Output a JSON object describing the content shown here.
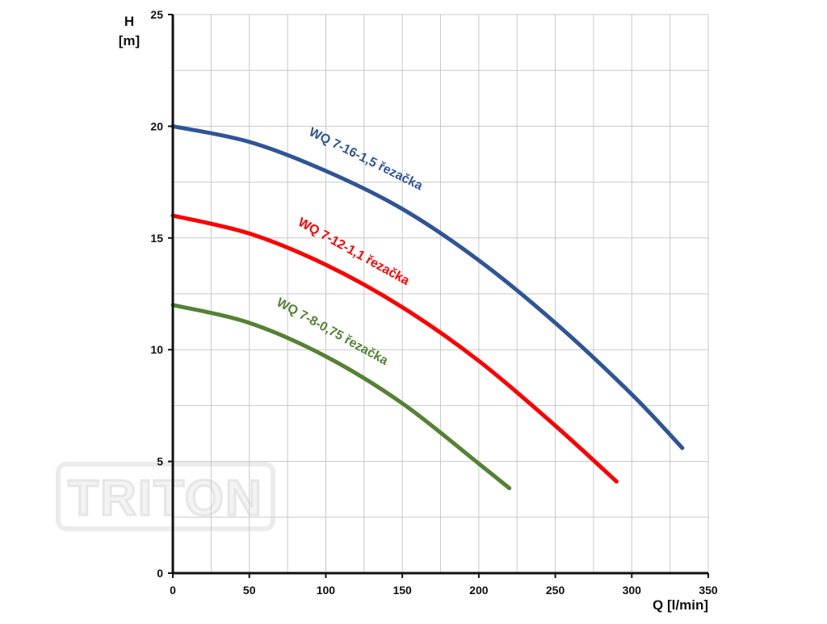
{
  "watermark": {
    "text": "TRITON"
  },
  "chart_data": {
    "type": "line",
    "title": "",
    "xlabel": "Q [l/min]",
    "ylabel_line1": "H",
    "ylabel_line2": "[m]",
    "xlim": [
      0,
      350
    ],
    "ylim": [
      0,
      25
    ],
    "grid": true,
    "x_ticks": [
      0,
      50,
      100,
      150,
      200,
      250,
      300,
      350
    ],
    "y_ticks": [
      0,
      5,
      10,
      15,
      20,
      25
    ],
    "series": [
      {
        "name": "WQ 7-16-1,5 řezačka",
        "color": "#2f5597",
        "points": [
          [
            0,
            20.0
          ],
          [
            50,
            19.3
          ],
          [
            100,
            18.0
          ],
          [
            150,
            16.3
          ],
          [
            200,
            14.0
          ],
          [
            250,
            11.2
          ],
          [
            300,
            8.0
          ],
          [
            333,
            5.6
          ]
        ]
      },
      {
        "name": "WQ 7-12-1,1 řezačka",
        "color": "#ff0000",
        "points": [
          [
            0,
            16.0
          ],
          [
            50,
            15.2
          ],
          [
            100,
            13.8
          ],
          [
            150,
            11.9
          ],
          [
            200,
            9.5
          ],
          [
            250,
            6.6
          ],
          [
            290,
            4.1
          ]
        ]
      },
      {
        "name": "WQ 7-8-0,75 řezačka",
        "color": "#548235",
        "points": [
          [
            0,
            12.0
          ],
          [
            50,
            11.2
          ],
          [
            100,
            9.7
          ],
          [
            150,
            7.6
          ],
          [
            200,
            4.9
          ],
          [
            220,
            3.8
          ]
        ]
      }
    ]
  }
}
